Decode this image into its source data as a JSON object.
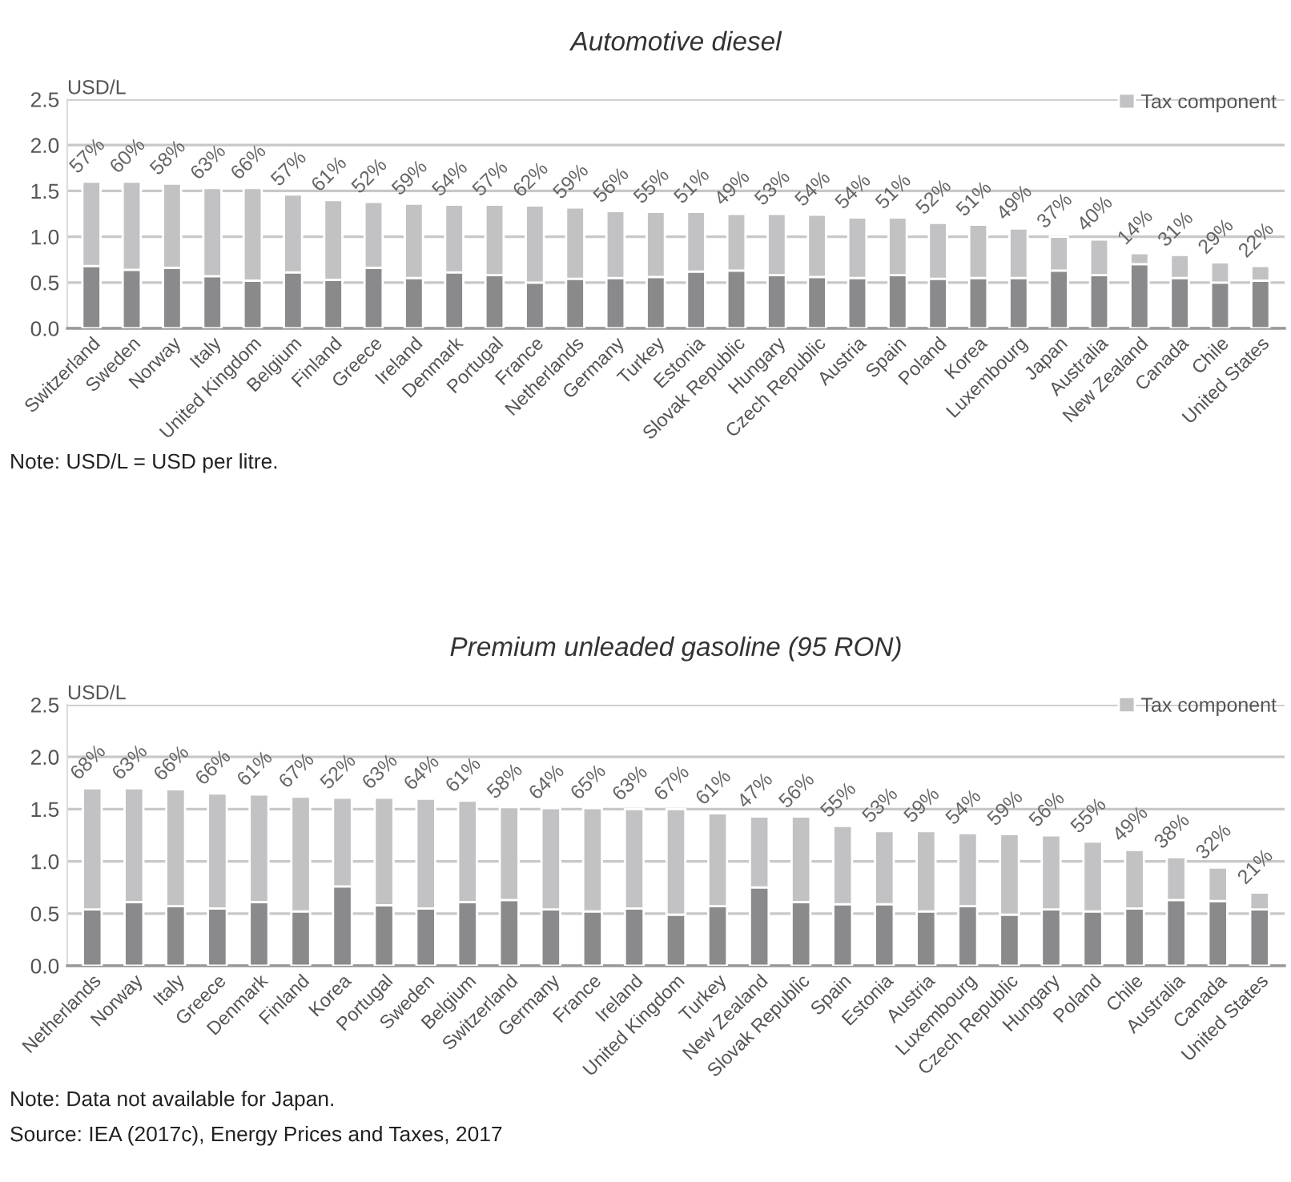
{
  "chart_data": [
    {
      "type": "bar",
      "title": "Automotive diesel",
      "ylabel": "USD/L",
      "stacked": true,
      "legend": "top right",
      "grid": "y",
      "categories": [
        "Switzerland",
        "Sweden",
        "Norway",
        "Italy",
        "United Kingdom",
        "Belgium",
        "Finland",
        "Greece",
        "Ireland",
        "Denmark",
        "Portugal",
        "France",
        "Netherlands",
        "Germany",
        "Turkey",
        "Estonia",
        "Slovak Republic",
        "Hungary",
        "Czech Republic",
        "Austria",
        "Spain",
        "Poland",
        "Korea",
        "Luxembourg",
        "Japan",
        "Australia",
        "New Zealand",
        "Canada",
        "Chile",
        "United States"
      ],
      "series": [
        {
          "color": "#8a8a8c",
          "values": [
            0.68,
            0.64,
            0.66,
            0.57,
            0.52,
            0.61,
            0.53,
            0.66,
            0.55,
            0.61,
            0.58,
            0.5,
            0.54,
            0.55,
            0.56,
            0.62,
            0.63,
            0.58,
            0.56,
            0.55,
            0.58,
            0.54,
            0.55,
            0.55,
            0.63,
            0.58,
            0.7,
            0.55,
            0.5,
            0.52
          ]
        },
        {
          "name": "Tax component",
          "color": "#c2c2c4",
          "values": [
            0.92,
            0.96,
            0.92,
            0.96,
            1.01,
            0.85,
            0.87,
            0.72,
            0.81,
            0.74,
            0.77,
            0.84,
            0.78,
            0.73,
            0.71,
            0.65,
            0.62,
            0.67,
            0.68,
            0.66,
            0.63,
            0.61,
            0.58,
            0.54,
            0.37,
            0.39,
            0.12,
            0.25,
            0.22,
            0.16
          ]
        }
      ],
      "ylim": [
        0,
        2.5
      ],
      "yticks": [
        {
          "value": 0,
          "label": "0.0"
        },
        {
          "value": 0.5,
          "label": "0.5"
        },
        {
          "value": 1,
          "label": "1.0"
        },
        {
          "value": 1.5,
          "label": "1.5"
        },
        {
          "value": 2,
          "label": "2.0"
        },
        {
          "value": 2.5,
          "label": "2.5"
        }
      ],
      "annotations": [
        {
          "text": "57%",
          "x": "Switzerland",
          "y": 1.6
        },
        {
          "text": "60%",
          "x": "Sweden",
          "y": 1.6
        },
        {
          "text": "58%",
          "x": "Norway",
          "y": 1.58
        },
        {
          "text": "63%",
          "x": "Italy",
          "y": 1.53
        },
        {
          "text": "66%",
          "x": "United Kingdom",
          "y": 1.53
        },
        {
          "text": "57%",
          "x": "Belgium",
          "y": 1.46
        },
        {
          "text": "61%",
          "x": "Finland",
          "y": 1.4
        },
        {
          "text": "52%",
          "x": "Greece",
          "y": 1.38
        },
        {
          "text": "59%",
          "x": "Ireland",
          "y": 1.36
        },
        {
          "text": "54%",
          "x": "Denmark",
          "y": 1.35
        },
        {
          "text": "57%",
          "x": "Portugal",
          "y": 1.35
        },
        {
          "text": "62%",
          "x": "France",
          "y": 1.34
        },
        {
          "text": "59%",
          "x": "Netherlands",
          "y": 1.32
        },
        {
          "text": "56%",
          "x": "Germany",
          "y": 1.28
        },
        {
          "text": "55%",
          "x": "Turkey",
          "y": 1.27
        },
        {
          "text": "51%",
          "x": "Estonia",
          "y": 1.27
        },
        {
          "text": "49%",
          "x": "Slovak Republic",
          "y": 1.25
        },
        {
          "text": "53%",
          "x": "Hungary",
          "y": 1.25
        },
        {
          "text": "54%",
          "x": "Czech Republic",
          "y": 1.24
        },
        {
          "text": "54%",
          "x": "Austria",
          "y": 1.21
        },
        {
          "text": "51%",
          "x": "Spain",
          "y": 1.21
        },
        {
          "text": "52%",
          "x": "Poland",
          "y": 1.15
        },
        {
          "text": "51%",
          "x": "Korea",
          "y": 1.13
        },
        {
          "text": "49%",
          "x": "Luxembourg",
          "y": 1.09
        },
        {
          "text": "37%",
          "x": "Japan",
          "y": 1.0
        },
        {
          "text": "40%",
          "x": "Australia",
          "y": 0.97
        },
        {
          "text": "14%",
          "x": "New Zealand",
          "y": 0.82
        },
        {
          "text": "31%",
          "x": "Canada",
          "y": 0.8
        },
        {
          "text": "29%",
          "x": "Chile",
          "y": 0.72
        },
        {
          "text": "22%",
          "x": "United States",
          "y": 0.68
        },
        "Note: USD/L = USD per litre."
      ]
    },
    {
      "type": "bar",
      "title": "Premium unleaded gasoline (95 RON)",
      "ylabel": "USD/L",
      "stacked": true,
      "legend": "top right",
      "grid": "y",
      "categories": [
        "Netherlands",
        "Norway",
        "Italy",
        "Greece",
        "Denmark",
        "Finland",
        "Korea",
        "Portugal",
        "Sweden",
        "Belgium",
        "Switzerland",
        "Germany",
        "France",
        "Ireland",
        "United Kingdom",
        "Turkey",
        "New Zealand",
        "Slovak Republic",
        "Spain",
        "Estonia",
        "Austria",
        "Luxembourg",
        "Czech Republic",
        "Hungary",
        "Poland",
        "Chile",
        "Australia",
        "Canada",
        "United States"
      ],
      "series": [
        {
          "color": "#8a8a8c",
          "values": [
            0.54,
            0.61,
            0.57,
            0.55,
            0.61,
            0.52,
            0.76,
            0.58,
            0.55,
            0.61,
            0.63,
            0.54,
            0.52,
            0.55,
            0.49,
            0.57,
            0.75,
            0.61,
            0.59,
            0.59,
            0.52,
            0.57,
            0.49,
            0.54,
            0.52,
            0.55,
            0.63,
            0.62,
            0.54
          ]
        },
        {
          "name": "Tax component",
          "color": "#c2c2c4",
          "values": [
            1.16,
            1.09,
            1.12,
            1.1,
            1.03,
            1.1,
            0.85,
            1.03,
            1.05,
            0.97,
            0.89,
            0.97,
            0.99,
            0.95,
            1.01,
            0.89,
            0.68,
            0.82,
            0.75,
            0.7,
            0.77,
            0.7,
            0.77,
            0.71,
            0.67,
            0.56,
            0.41,
            0.32,
            0.16
          ]
        }
      ],
      "ylim": [
        0,
        2.5
      ],
      "yticks": [
        {
          "value": 0,
          "label": "0.0"
        },
        {
          "value": 0.5,
          "label": "0.5"
        },
        {
          "value": 1,
          "label": "1.0"
        },
        {
          "value": 1.5,
          "label": "1.5"
        },
        {
          "value": 2,
          "label": "2.0"
        },
        {
          "value": 2.5,
          "label": "2.5"
        }
      ],
      "annotations": [
        {
          "text": "68%",
          "x": "Netherlands",
          "y": 1.7
        },
        {
          "text": "63%",
          "x": "Norway",
          "y": 1.7
        },
        {
          "text": "66%",
          "x": "Italy",
          "y": 1.69
        },
        {
          "text": "66%",
          "x": "Greece",
          "y": 1.65
        },
        {
          "text": "61%",
          "x": "Denmark",
          "y": 1.64
        },
        {
          "text": "67%",
          "x": "Finland",
          "y": 1.62
        },
        {
          "text": "52%",
          "x": "Korea",
          "y": 1.61
        },
        {
          "text": "63%",
          "x": "Portugal",
          "y": 1.61
        },
        {
          "text": "64%",
          "x": "Sweden",
          "y": 1.6
        },
        {
          "text": "61%",
          "x": "Belgium",
          "y": 1.58
        },
        {
          "text": "58%",
          "x": "Switzerland",
          "y": 1.52
        },
        {
          "text": "64%",
          "x": "Germany",
          "y": 1.51
        },
        {
          "text": "65%",
          "x": "France",
          "y": 1.51
        },
        {
          "text": "63%",
          "x": "Ireland",
          "y": 1.5
        },
        {
          "text": "67%",
          "x": "United Kingdom",
          "y": 1.5
        },
        {
          "text": "61%",
          "x": "Turkey",
          "y": 1.46
        },
        {
          "text": "47%",
          "x": "New Zealand",
          "y": 1.43
        },
        {
          "text": "56%",
          "x": "Slovak Republic",
          "y": 1.43
        },
        {
          "text": "55%",
          "x": "Spain",
          "y": 1.34
        },
        {
          "text": "53%",
          "x": "Estonia",
          "y": 1.29
        },
        {
          "text": "59%",
          "x": "Austria",
          "y": 1.29
        },
        {
          "text": "54%",
          "x": "Luxembourg",
          "y": 1.27
        },
        {
          "text": "59%",
          "x": "Czech Republic",
          "y": 1.26
        },
        {
          "text": "56%",
          "x": "Hungary",
          "y": 1.25
        },
        {
          "text": "55%",
          "x": "Poland",
          "y": 1.19
        },
        {
          "text": "49%",
          "x": "Chile",
          "y": 1.11
        },
        {
          "text": "38%",
          "x": "Australia",
          "y": 1.04
        },
        {
          "text": "32%",
          "x": "Canada",
          "y": 0.94
        },
        {
          "text": "21%",
          "x": "United States",
          "y": 0.7
        },
        "Note: Data not available for Japan.",
        "Source: IEA (2017c), Energy Prices and Taxes, 2017"
      ]
    }
  ]
}
